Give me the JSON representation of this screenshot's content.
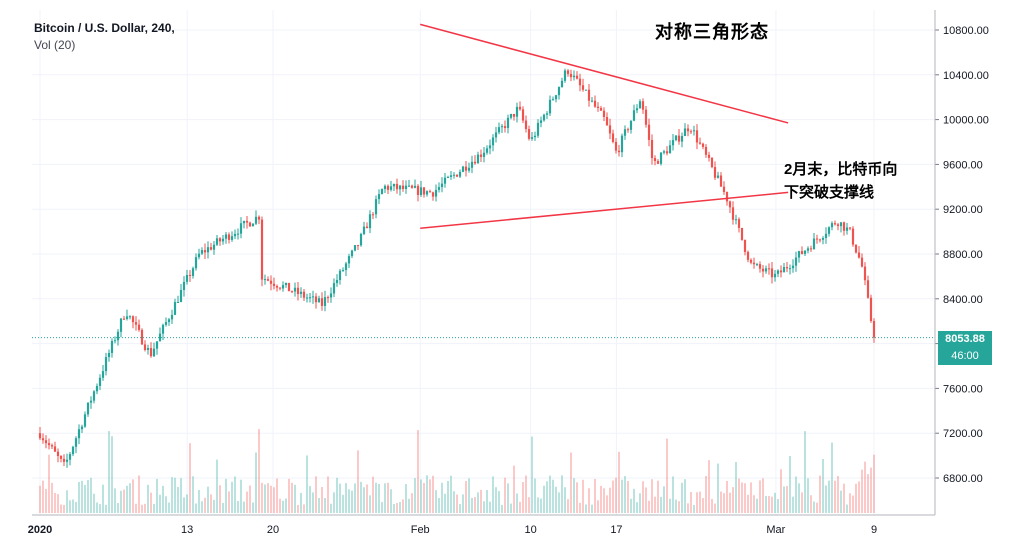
{
  "legend": {
    "symbol": "Bitcoin / U.S. Dollar, 240,",
    "volume": "Vol (20)"
  },
  "annotations": {
    "title": "对称三角形态",
    "note_line1": "2月末，比特币向",
    "note_line2": "下突破支撑线"
  },
  "price_axis": {
    "ticks": [
      10800,
      10400,
      10000,
      9600,
      9200,
      8800,
      8400,
      8000,
      7600,
      7200,
      6800
    ],
    "tick_labels": [
      "10800.00",
      "10400.00",
      "10000.00",
      "9600.00",
      "9200.00",
      "8800.00",
      "8400.00",
      "7600.00",
      "7200.00",
      "6800.00"
    ],
    "current_price": "8053.88",
    "countdown": "46:00"
  },
  "time_axis": {
    "labels": [
      "2020",
      "13",
      "20",
      "Feb",
      "10",
      "17",
      "Mar",
      "9"
    ]
  },
  "colors": {
    "up": "#26a69a",
    "down": "#ef5350",
    "trendline": "#f23645",
    "grid": "#f0f3fa",
    "axis_text": "#131722",
    "price_line": "#26a69a"
  },
  "chart_data": {
    "type": "candlestick",
    "title": "Bitcoin / U.S. Dollar, 240,",
    "timeframe": "240",
    "x": [
      "2020-01-01",
      "2020-01-13",
      "2020-01-20",
      "2020-02-01",
      "2020-02-10",
      "2020-02-17",
      "2020-03-01",
      "2020-03-09"
    ],
    "ylim": [
      6600,
      10900
    ],
    "key_points": [
      {
        "date": "2020-01-01",
        "close": 7200
      },
      {
        "date": "2020-01-03",
        "close": 6900
      },
      {
        "date": "2020-01-08",
        "close": 8300
      },
      {
        "date": "2020-01-10",
        "close": 7900
      },
      {
        "date": "2020-01-14",
        "close": 8800
      },
      {
        "date": "2020-01-19",
        "close": 9150
      },
      {
        "date": "2020-01-19",
        "close": 8600
      },
      {
        "date": "2020-01-24",
        "close": 8350
      },
      {
        "date": "2020-01-27",
        "close": 8900
      },
      {
        "date": "2020-01-29",
        "close": 9400
      },
      {
        "date": "2020-02-02",
        "close": 9350
      },
      {
        "date": "2020-02-06",
        "close": 9700
      },
      {
        "date": "2020-02-09",
        "close": 10100
      },
      {
        "date": "2020-02-10",
        "close": 9800
      },
      {
        "date": "2020-02-13",
        "close": 10450
      },
      {
        "date": "2020-02-16",
        "close": 10000
      },
      {
        "date": "2020-02-17",
        "close": 9700
      },
      {
        "date": "2020-02-19",
        "close": 10200
      },
      {
        "date": "2020-02-20",
        "close": 9600
      },
      {
        "date": "2020-02-23",
        "close": 9950
      },
      {
        "date": "2020-02-26",
        "close": 9300
      },
      {
        "date": "2020-02-28",
        "close": 8700
      },
      {
        "date": "2020-03-01",
        "close": 8600
      },
      {
        "date": "2020-03-03",
        "close": 8800
      },
      {
        "date": "2020-03-06",
        "close": 9100
      },
      {
        "date": "2020-03-07",
        "close": 9000
      },
      {
        "date": "2020-03-08",
        "close": 8700
      },
      {
        "date": "2020-03-09",
        "close": 8053.88
      }
    ],
    "trendlines": [
      {
        "name": "resistance",
        "from": {
          "date": "2020-02-01",
          "price": 10850
        },
        "to": {
          "date": "2020-03-02",
          "price": 9970
        }
      },
      {
        "name": "support",
        "from": {
          "date": "2020-02-01",
          "price": 9030
        },
        "to": {
          "date": "2020-03-02",
          "price": 9350
        }
      }
    ],
    "volume": {
      "label": "Vol (20)"
    },
    "grid": true
  }
}
